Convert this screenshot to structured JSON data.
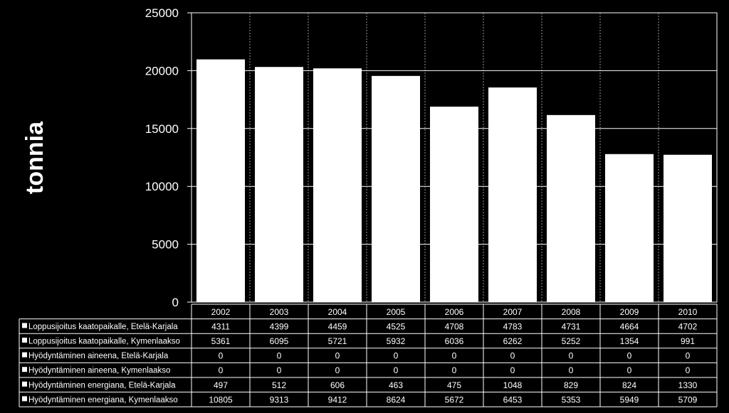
{
  "chart_data": {
    "type": "bar",
    "ylabel": "tonnia",
    "ylim": [
      0,
      25000
    ],
    "yticks": [
      0,
      5000,
      10000,
      15000,
      20000,
      25000
    ],
    "grid": true,
    "categories": [
      "2002",
      "2003",
      "2004",
      "2005",
      "2006",
      "2007",
      "2008",
      "2009",
      "2010"
    ],
    "series": [
      {
        "name": "Loppusijoitus kaatopaikalle, Etelä-Karjala",
        "values": [
          4311,
          4399,
          4459,
          4525,
          4708,
          4783,
          4731,
          4664,
          4702
        ]
      },
      {
        "name": "Loppusijoitus kaatopaikalle, Kymenlaakso",
        "values": [
          5361,
          6095,
          5721,
          5932,
          6036,
          6262,
          5252,
          1354,
          991
        ]
      },
      {
        "name": "Hyödyntäminen aineena, Etelä-Karjala",
        "values": [
          0,
          0,
          0,
          0,
          0,
          0,
          0,
          0,
          0
        ]
      },
      {
        "name": "Hyödyntäminen aineena, Kymenlaakso",
        "values": [
          0,
          0,
          0,
          0,
          0,
          0,
          0,
          0,
          0
        ]
      },
      {
        "name": "Hyödyntäminen energiana, Etelä-Karjala",
        "values": [
          497,
          512,
          606,
          463,
          475,
          1048,
          829,
          824,
          1330
        ]
      },
      {
        "name": "Hyödyntäminen energiana, Kymenlaakso",
        "values": [
          10805,
          9313,
          9412,
          8624,
          5672,
          6453,
          5353,
          5949,
          5709
        ]
      }
    ],
    "colors": {
      "background": "#000000",
      "bars": "#ffffff",
      "grid": "#ffffff",
      "text": "#ffffff"
    }
  }
}
